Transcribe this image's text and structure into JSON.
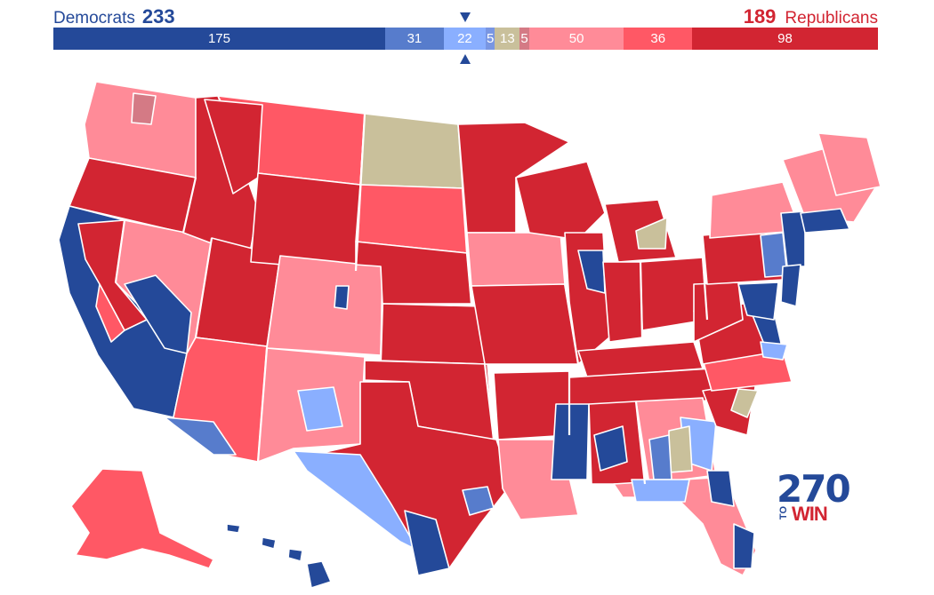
{
  "header": {
    "dem_label": "Democrats",
    "dem_count": "233",
    "rep_count": "189",
    "rep_label": "Republicans"
  },
  "bar_segments": [
    {
      "value": 175,
      "label": "175",
      "color": "#244999"
    },
    {
      "value": 31,
      "label": "31",
      "color": "#577ccc"
    },
    {
      "value": 22,
      "label": "22",
      "color": "#8aafff"
    },
    {
      "value": 5,
      "label": "5",
      "color": "#7996e2"
    },
    {
      "value": 13,
      "label": "13",
      "color": "#c9c09b"
    },
    {
      "value": 5,
      "label": "5",
      "color": "#d47a85"
    },
    {
      "value": 50,
      "label": "50",
      "color": "#ff8b98"
    },
    {
      "value": 36,
      "label": "36",
      "color": "#ff5865"
    },
    {
      "value": 98,
      "label": "98",
      "color": "#d22532"
    }
  ],
  "colors": {
    "safe_dem": "#244999",
    "likely_dem": "#577ccc",
    "lean_dem": "#8aafff",
    "tossup": "#c9c09b",
    "lean_rep": "#ff8b98",
    "likely_rep": "#ff5865",
    "safe_rep": "#d22532"
  },
  "logo": {
    "number": "270",
    "to": "TO",
    "win": "WIN"
  }
}
